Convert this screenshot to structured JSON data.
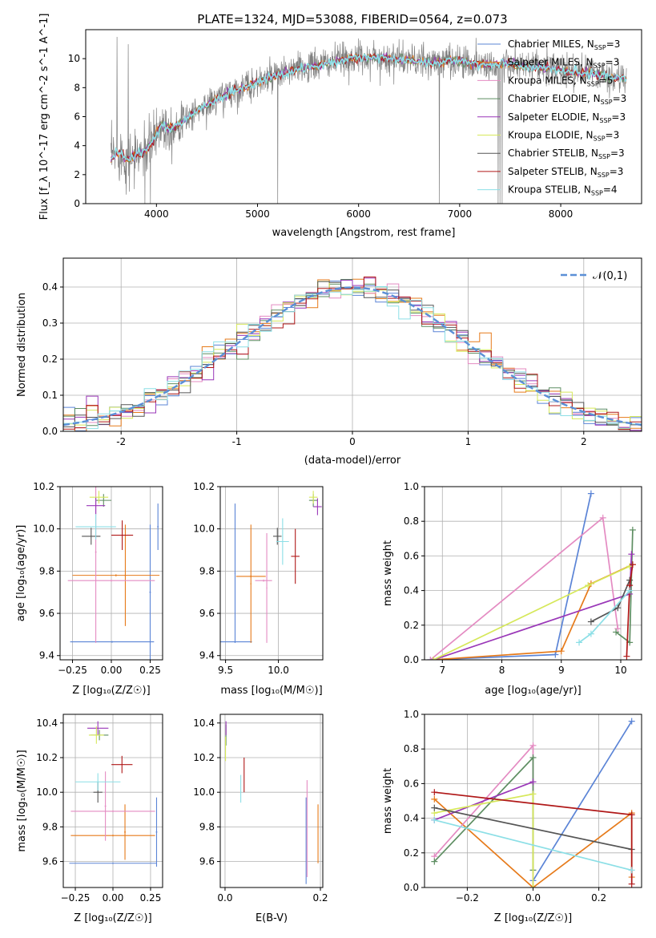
{
  "figure_title": "PLATE=1324, MJD=53088, FIBERID=0564, z=0.073",
  "colors": {
    "series": [
      "#5b84d6",
      "#e67a1a",
      "#e48bc2",
      "#5e8e62",
      "#9a37b8",
      "#d6e85a",
      "#555555",
      "#b01818",
      "#8cdfe6"
    ],
    "spectrum_data": "#808080",
    "gauss_line": "#5b8fd6"
  },
  "chart_data": [
    {
      "id": "spectrum",
      "type": "line",
      "title": "PLATE=1324, MJD=53088, FIBERID=0564, z=0.073",
      "xlabel": "wavelength [Angstrom, rest frame]",
      "ylabel": "Flux [f_λ 10^-17 erg cm^-2 s^-1 A^-1]",
      "xlim": [
        3300,
        8800
      ],
      "ylim": [
        0,
        12
      ],
      "xticks": [
        4000,
        5000,
        6000,
        7000,
        8000
      ],
      "yticks": [
        0,
        2,
        4,
        6,
        8,
        10
      ],
      "legend_position": "top-right",
      "legend": [
        {
          "label": "Chabrier MILES, N",
          "sub": "SSP",
          "tail": "=3",
          "color": "#5b84d6"
        },
        {
          "label": "Salpeter MILES, N",
          "sub": "SSP",
          "tail": "=3",
          "color": "#e67a1a"
        },
        {
          "label": "Kroupa MILES, N",
          "sub": "SSP",
          "tail": "=5",
          "color": "#e48bc2"
        },
        {
          "label": "Chabrier ELODIE, N",
          "sub": "SSP",
          "tail": "=3",
          "color": "#5e8e62"
        },
        {
          "label": "Salpeter ELODIE, N",
          "sub": "SSP",
          "tail": "=3",
          "color": "#9a37b8"
        },
        {
          "label": "Kroupa ELODIE, N",
          "sub": "SSP",
          "tail": "=3",
          "color": "#d6e85a"
        },
        {
          "label": "Chabrier STELIB, N",
          "sub": "SSP",
          "tail": "=3",
          "color": "#555555"
        },
        {
          "label": "Salpeter STELIB, N",
          "sub": "SSP",
          "tail": "=3",
          "color": "#b01818"
        },
        {
          "label": "Kroupa STELIB, N",
          "sub": "SSP",
          "tail": "=4",
          "color": "#8cdfe6"
        }
      ],
      "continuum": [
        [
          3550,
          3.2
        ],
        [
          3650,
          3.6
        ],
        [
          3700,
          3.0
        ],
        [
          3800,
          3.3
        ],
        [
          3900,
          3.7
        ],
        [
          3960,
          4.3
        ],
        [
          4050,
          5.5
        ],
        [
          4150,
          5.2
        ],
        [
          4250,
          5.6
        ],
        [
          4350,
          6.2
        ],
        [
          4500,
          6.8
        ],
        [
          4700,
          7.6
        ],
        [
          4900,
          8.1
        ],
        [
          5100,
          8.6
        ],
        [
          5300,
          9.1
        ],
        [
          5500,
          9.4
        ],
        [
          5700,
          9.7
        ],
        [
          5900,
          10.0
        ],
        [
          6100,
          10.1
        ],
        [
          6300,
          10.0
        ],
        [
          6500,
          9.9
        ],
        [
          6700,
          9.7
        ],
        [
          6900,
          9.9
        ],
        [
          7100,
          9.7
        ],
        [
          7300,
          9.6
        ],
        [
          7500,
          9.6
        ],
        [
          7700,
          9.4
        ],
        [
          7900,
          9.3
        ],
        [
          8100,
          9.1
        ],
        [
          8300,
          9.0
        ],
        [
          8500,
          8.7
        ],
        [
          8650,
          8.6
        ]
      ],
      "spikes": [
        [
          3610,
          11.5
        ],
        [
          3720,
          11.0
        ],
        [
          3780,
          1.0
        ],
        [
          3885,
          0.0
        ],
        [
          3940,
          0.0
        ],
        [
          5200,
          0.0
        ],
        [
          6800,
          0.0
        ],
        [
          7380,
          0.0
        ],
        [
          7400,
          0.0
        ],
        [
          7420,
          0.0
        ]
      ]
    },
    {
      "id": "residuals",
      "type": "line",
      "xlabel": "(data-model)/error",
      "ylabel": "Normed distribution",
      "xlim": [
        -2.5,
        2.5
      ],
      "ylim": [
        0,
        0.48
      ],
      "xticks": [
        -2,
        -1,
        0,
        1,
        2
      ],
      "yticks": [
        0.0,
        0.1,
        0.2,
        0.3,
        0.4
      ],
      "legend": [
        "𝒩(0,1)"
      ],
      "legend_position": "top-right",
      "gaussian": {
        "mean": 0,
        "sigma": 1
      },
      "bin_width": 0.1
    },
    {
      "id": "age-vs-Z",
      "type": "scatter",
      "xlabel": "Z [log₁₀(Z/Z☉)]",
      "ylabel": "age  [log₁₀(age/yr)]",
      "xlim": [
        -0.33,
        0.33
      ],
      "ylim": [
        9.38,
        10.2
      ],
      "xticks": [
        -0.25,
        0.0,
        0.25
      ],
      "xtick_labels": [
        "−0.25",
        "0.00",
        "0.25"
      ],
      "yticks": [
        9.4,
        9.6,
        9.8,
        10.0,
        10.2
      ],
      "points": [
        {
          "x": 0.3,
          "xerr": 0.005,
          "y": 10.01,
          "yerr": 0.11,
          "c": 0
        },
        {
          "x": 0.005,
          "xerr": 0.27,
          "y": 9.465,
          "yerr": 0.004,
          "c": 0
        },
        {
          "x": 0.25,
          "xerr": 0.005,
          "y": 9.7,
          "yerr": 0.32,
          "c": 0
        },
        {
          "x": 0.09,
          "xerr": 0.005,
          "y": 9.78,
          "yerr": 0.24,
          "c": 1
        },
        {
          "x": 0.03,
          "xerr": 0.28,
          "y": 9.78,
          "yerr": 0.005,
          "c": 1
        },
        {
          "x": -0.1,
          "xerr": 0.005,
          "y": 9.89,
          "yerr": 0.43,
          "c": 2
        },
        {
          "x": 0.0,
          "xerr": 0.28,
          "y": 9.755,
          "yerr": 0.005,
          "c": 2
        },
        {
          "x": -0.05,
          "xerr": 0.05,
          "y": 10.135,
          "yerr": 0.03,
          "c": 3
        },
        {
          "x": -0.1,
          "xerr": 0.06,
          "y": 10.11,
          "yerr": 0.04,
          "c": 4
        },
        {
          "x": -0.08,
          "xerr": 0.06,
          "y": 10.15,
          "yerr": 0.03,
          "c": 5
        },
        {
          "x": -0.13,
          "xerr": 0.06,
          "y": 9.965,
          "yerr": 0.04,
          "c": 6
        },
        {
          "x": 0.07,
          "xerr": 0.07,
          "y": 9.97,
          "yerr": 0.07,
          "c": 7
        },
        {
          "x": -0.1,
          "xerr": 0.13,
          "y": 10.01,
          "yerr": 0.06,
          "c": 8
        }
      ]
    },
    {
      "id": "age-vs-mass",
      "type": "scatter",
      "xlabel": "mass [log₁₀(M/M☉)]",
      "ylabel": "",
      "xlim": [
        9.45,
        10.42
      ],
      "ylim": [
        9.38,
        10.2
      ],
      "xticks": [
        9.5,
        10.0
      ],
      "xtick_labels": [
        "9.5",
        "10.0"
      ],
      "yticks": [
        9.4,
        9.6,
        9.8,
        10.0,
        10.2
      ],
      "points": [
        {
          "x": 9.59,
          "xerr": 0.005,
          "y": 9.79,
          "yerr": 0.33,
          "c": 0
        },
        {
          "x": 9.59,
          "xerr": 0.16,
          "y": 9.465,
          "yerr": 0.004,
          "c": 0
        },
        {
          "x": 9.74,
          "xerr": 0.005,
          "y": 9.74,
          "yerr": 0.28,
          "c": 1
        },
        {
          "x": 9.74,
          "xerr": 0.14,
          "y": 9.775,
          "yerr": 0.005,
          "c": 1
        },
        {
          "x": 9.89,
          "xerr": 0.005,
          "y": 9.72,
          "yerr": 0.26,
          "c": 2
        },
        {
          "x": 9.86,
          "xerr": 0.08,
          "y": 9.755,
          "yerr": 0.005,
          "c": 2
        },
        {
          "x": 10.33,
          "xerr": 0.04,
          "y": 10.135,
          "yerr": 0.03,
          "c": 3
        },
        {
          "x": 10.37,
          "xerr": 0.04,
          "y": 10.105,
          "yerr": 0.04,
          "c": 4
        },
        {
          "x": 10.33,
          "xerr": 0.04,
          "y": 10.15,
          "yerr": 0.03,
          "c": 5
        },
        {
          "x": 9.99,
          "xerr": 0.04,
          "y": 9.965,
          "yerr": 0.04,
          "c": 6
        },
        {
          "x": 10.16,
          "xerr": 0.04,
          "y": 9.87,
          "yerr": 0.13,
          "c": 7
        },
        {
          "x": 10.04,
          "xerr": 0.06,
          "y": 9.94,
          "yerr": 0.11,
          "c": 8
        }
      ]
    },
    {
      "id": "weight-vs-age",
      "type": "line",
      "xlabel": "age  [log₁₀(age/yr)]",
      "ylabel": "mass weight",
      "xlim": [
        6.7,
        10.35
      ],
      "ylim": [
        0,
        1.0
      ],
      "xticks": [
        7,
        8,
        9,
        10
      ],
      "xtick_labels": [
        "7",
        "8",
        "9",
        "10"
      ],
      "yticks": [
        0.0,
        0.2,
        0.4,
        0.6,
        0.8,
        1.0
      ],
      "series": [
        {
          "c": 0,
          "points": [
            [
              6.8,
              0.0
            ],
            [
              8.9,
              0.03
            ],
            [
              9.5,
              0.96
            ]
          ]
        },
        {
          "c": 1,
          "points": [
            [
              6.85,
              0.0
            ],
            [
              9.0,
              0.05
            ],
            [
              9.5,
              0.44
            ],
            [
              10.2,
              0.55
            ]
          ]
        },
        {
          "c": 2,
          "points": [
            [
              6.8,
              0.0
            ],
            [
              9.7,
              0.82
            ],
            [
              9.95,
              0.18
            ]
          ]
        },
        {
          "c": 3,
          "points": [
            [
              9.92,
              0.16
            ],
            [
              10.15,
              0.1
            ],
            [
              10.2,
              0.75
            ]
          ]
        },
        {
          "c": 4,
          "points": [
            [
              6.85,
              0.0
            ],
            [
              10.15,
              0.38
            ],
            [
              10.18,
              0.61
            ]
          ]
        },
        {
          "c": 5,
          "points": [
            [
              6.85,
              0.0
            ],
            [
              9.45,
              0.43
            ],
            [
              10.15,
              0.54
            ]
          ]
        },
        {
          "c": 6,
          "points": [
            [
              9.5,
              0.22
            ],
            [
              9.95,
              0.3
            ],
            [
              10.15,
              0.46
            ]
          ]
        },
        {
          "c": 7,
          "points": [
            [
              10.1,
              0.02
            ],
            [
              10.15,
              0.43
            ],
            [
              10.2,
              0.55
            ]
          ]
        },
        {
          "c": 8,
          "points": [
            [
              9.3,
              0.1
            ],
            [
              9.5,
              0.15
            ],
            [
              10.15,
              0.4
            ]
          ]
        }
      ]
    },
    {
      "id": "mass-vs-Z",
      "type": "scatter",
      "xlabel": "Z [log₁₀(Z/Z☉)]",
      "ylabel": "mass [log₁₀(M/M☉)]",
      "xlim": [
        -0.33,
        0.33
      ],
      "ylim": [
        9.45,
        10.45
      ],
      "xticks": [
        -0.25,
        0.0,
        0.25
      ],
      "xtick_labels": [
        "−0.25",
        "0.00",
        "0.25"
      ],
      "yticks": [
        9.6,
        9.8,
        10.0,
        10.2,
        10.4
      ],
      "points": [
        {
          "x": 0.29,
          "xerr": 0.005,
          "y": 9.77,
          "yerr": 0.2,
          "c": 0
        },
        {
          "x": 0.0,
          "xerr": 0.29,
          "y": 9.59,
          "yerr": 0.004,
          "c": 0
        },
        {
          "x": 0.08,
          "xerr": 0.005,
          "y": 9.77,
          "yerr": 0.16,
          "c": 1
        },
        {
          "x": 0.0,
          "xerr": 0.28,
          "y": 9.75,
          "yerr": 0.005,
          "c": 1
        },
        {
          "x": -0.05,
          "xerr": 0.005,
          "y": 9.92,
          "yerr": 0.2,
          "c": 2
        },
        {
          "x": 0.0,
          "xerr": 0.28,
          "y": 9.89,
          "yerr": 0.005,
          "c": 2
        },
        {
          "x": -0.09,
          "xerr": 0.06,
          "y": 10.33,
          "yerr": 0.03,
          "c": 3
        },
        {
          "x": -0.1,
          "xerr": 0.07,
          "y": 10.37,
          "yerr": 0.04,
          "c": 4
        },
        {
          "x": -0.11,
          "xerr": 0.05,
          "y": 10.33,
          "yerr": 0.05,
          "c": 5
        },
        {
          "x": -0.1,
          "xerr": 0.03,
          "y": 10.0,
          "yerr": 0.06,
          "c": 6
        },
        {
          "x": 0.06,
          "xerr": 0.07,
          "y": 10.16,
          "yerr": 0.05,
          "c": 7
        },
        {
          "x": -0.1,
          "xerr": 0.15,
          "y": 10.06,
          "yerr": 0.05,
          "c": 8
        }
      ]
    },
    {
      "id": "mass-vs-EBV",
      "type": "scatter",
      "xlabel": "E(B-V)",
      "ylabel": "",
      "xlim": [
        -0.01,
        0.205
      ],
      "ylim": [
        9.45,
        10.45
      ],
      "xticks": [
        0.0,
        0.2
      ],
      "xtick_labels": [
        "0.0",
        "0.2"
      ],
      "yticks": [
        9.6,
        9.8,
        10.0,
        10.2,
        10.4
      ],
      "points": [
        {
          "x": 0.17,
          "xerr": 0.0,
          "y": 9.72,
          "yerr": 0.25,
          "c": 0
        },
        {
          "x": 0.195,
          "xerr": 0.0,
          "y": 9.76,
          "yerr": 0.17,
          "c": 1
        },
        {
          "x": 0.172,
          "xerr": 0.0,
          "y": 9.79,
          "yerr": 0.28,
          "c": 2
        },
        {
          "x": 0.002,
          "xerr": 0.0,
          "y": 10.33,
          "yerr": 0.06,
          "c": 3
        },
        {
          "x": 0.002,
          "xerr": 0.0,
          "y": 10.37,
          "yerr": 0.04,
          "c": 4
        },
        {
          "x": 0.001,
          "xerr": 0.0,
          "y": 10.25,
          "yerr": 0.07,
          "c": 5
        },
        {
          "x": 0.04,
          "xerr": 0.0,
          "y": 10.1,
          "yerr": 0.1,
          "c": 7
        },
        {
          "x": 0.033,
          "xerr": 0.0,
          "y": 10.02,
          "yerr": 0.08,
          "c": 8
        }
      ]
    },
    {
      "id": "weight-vs-Z",
      "type": "line",
      "xlabel": "Z [log₁₀(Z/Z☉)]",
      "ylabel": "mass weight",
      "xlim": [
        -0.33,
        0.33
      ],
      "ylim": [
        0,
        1.0
      ],
      "xticks": [
        -0.2,
        0.0,
        0.2
      ],
      "xtick_labels": [
        "−0.2",
        "0.0",
        "0.2"
      ],
      "yticks": [
        0.0,
        0.2,
        0.4,
        0.6,
        0.8,
        1.0
      ],
      "series": [
        {
          "c": 0,
          "points": [
            [
              0.0,
              0.04
            ],
            [
              0.3,
              0.96
            ]
          ]
        },
        {
          "c": 1,
          "points": [
            [
              -0.3,
              0.51
            ],
            [
              0.0,
              0.0
            ],
            [
              0.3,
              0.43
            ],
            [
              0.3,
              0.06
            ]
          ]
        },
        {
          "c": 2,
          "points": [
            [
              -0.3,
              0.18
            ],
            [
              0.0,
              0.82
            ],
            [
              0.0,
              0.0
            ]
          ]
        },
        {
          "c": 3,
          "points": [
            [
              -0.3,
              0.15
            ],
            [
              0.0,
              0.75
            ],
            [
              0.0,
              0.1
            ]
          ]
        },
        {
          "c": 4,
          "points": [
            [
              -0.3,
              0.39
            ],
            [
              0.0,
              0.61
            ]
          ]
        },
        {
          "c": 5,
          "points": [
            [
              -0.3,
              0.43
            ],
            [
              0.0,
              0.54
            ],
            [
              0.0,
              0.0
            ]
          ]
        },
        {
          "c": 6,
          "points": [
            [
              -0.3,
              0.46
            ],
            [
              0.3,
              0.22
            ]
          ]
        },
        {
          "c": 7,
          "points": [
            [
              -0.3,
              0.55
            ],
            [
              0.3,
              0.42
            ],
            [
              0.3,
              0.02
            ]
          ]
        },
        {
          "c": 8,
          "points": [
            [
              -0.3,
              0.39
            ],
            [
              0.3,
              0.1
            ]
          ]
        }
      ]
    }
  ]
}
